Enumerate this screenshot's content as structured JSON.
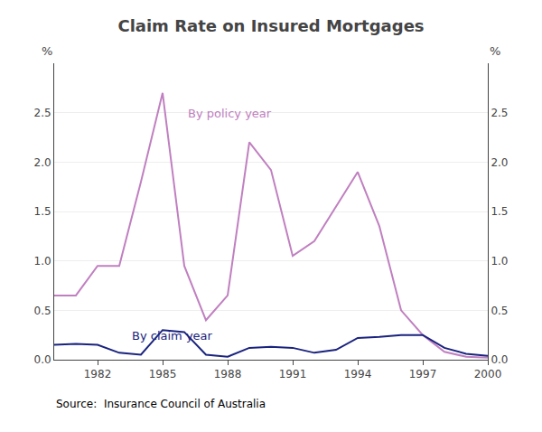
{
  "chart_data": {
    "type": "line",
    "title": "Claim Rate on Insured Mortgages",
    "source": "Source:  Insurance Council of Australia",
    "ylabel": "%",
    "y2label": "%",
    "x": [
      1980,
      1981,
      1982,
      1983,
      1984,
      1985,
      1986,
      1987,
      1988,
      1989,
      1990,
      1991,
      1992,
      1993,
      1994,
      1995,
      1996,
      1997,
      1998,
      1999,
      2000
    ],
    "series": [
      {
        "color": "#c080c0",
        "values": [
          0.65,
          0.65,
          0.95,
          0.95,
          1.8,
          2.7,
          0.95,
          0.4,
          0.65,
          2.2,
          1.92,
          1.05,
          1.2,
          1.55,
          1.9,
          1.35,
          0.5,
          0.25,
          0.08,
          0.03,
          0.02
        ]
      },
      {
        "color": "#1a237e",
        "values": [
          0.15,
          0.16,
          0.15,
          0.07,
          0.05,
          0.3,
          0.28,
          0.05,
          0.03,
          0.12,
          0.13,
          0.12,
          0.07,
          0.1,
          0.22,
          0.23,
          0.25,
          0.25,
          0.12,
          0.06,
          0.04
        ]
      }
    ],
    "annotations": [
      {
        "text": "By policy year",
        "x": 1986.1,
        "y": 2.58,
        "color": "#c080c0"
      },
      {
        "text": "By claim year",
        "x": 1983.5,
        "y": 0.33,
        "color": "#1a237e"
      }
    ],
    "xlim": [
      1980,
      2000
    ],
    "xticks": [
      1982,
      1985,
      1988,
      1991,
      1994,
      1997,
      2000
    ],
    "ylim": [
      0.0,
      3.0
    ],
    "yticks": [
      {
        "value": 0.0,
        "label": "0.0"
      },
      0.5,
      {
        "value": 1.0,
        "label": "1.0"
      },
      1.5,
      {
        "value": 2.0,
        "label": "2.0"
      },
      2.5
    ],
    "y2lim": [
      0.0,
      3.0
    ],
    "y2ticks": [
      {
        "value": 0.0,
        "label": "0.0"
      },
      0.5,
      {
        "value": 1.0,
        "label": "1.0"
      },
      1.5,
      {
        "value": 2.0,
        "label": "2.0"
      },
      2.5
    ],
    "grid": "y"
  }
}
